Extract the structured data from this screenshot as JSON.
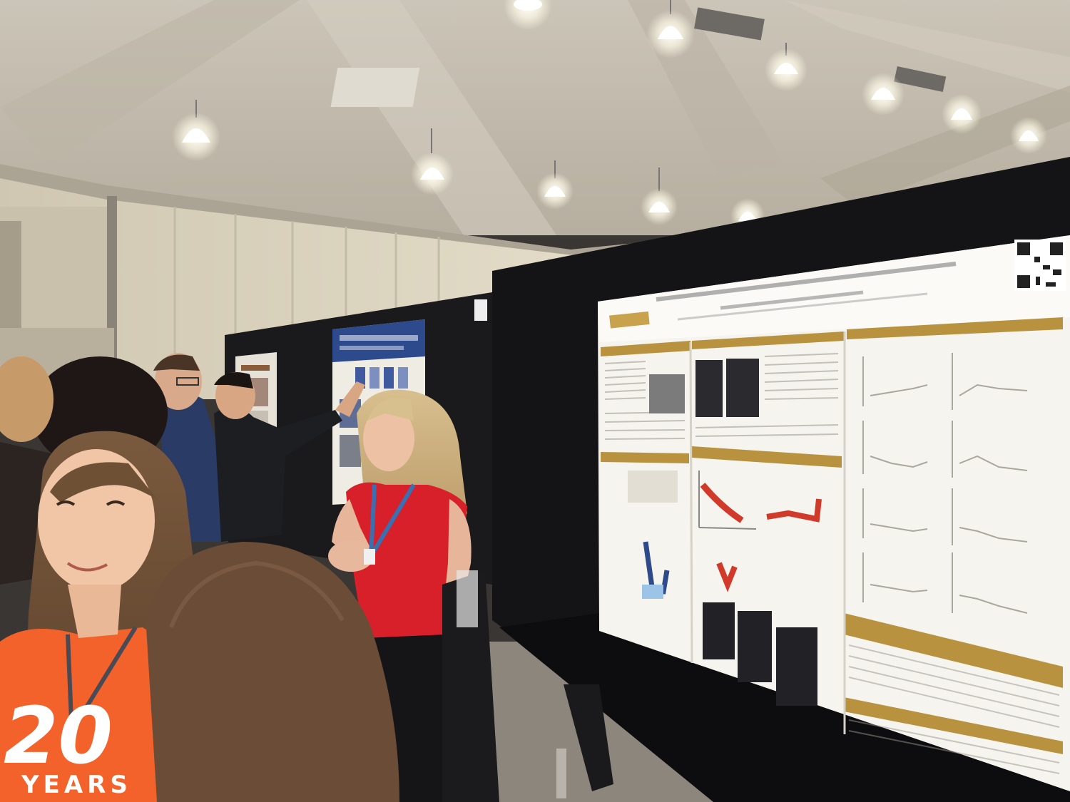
{
  "scene": {
    "description_tag": "poster-session",
    "colors": {
      "ceiling": "#cfc9bd",
      "ceiling_shadow": "#a7a094",
      "wall": "#ddd6c2",
      "board_black": "#141416",
      "poster_white": "#f6f4ee",
      "poster_gold": "#b8923f",
      "orange_shirt": "#f2622a",
      "red_top": "#d8202a",
      "navy_jacket": "#2a3c66",
      "floor": "#8d867d"
    }
  },
  "tshirt": {
    "numeral": "20",
    "word": "YEARS"
  }
}
